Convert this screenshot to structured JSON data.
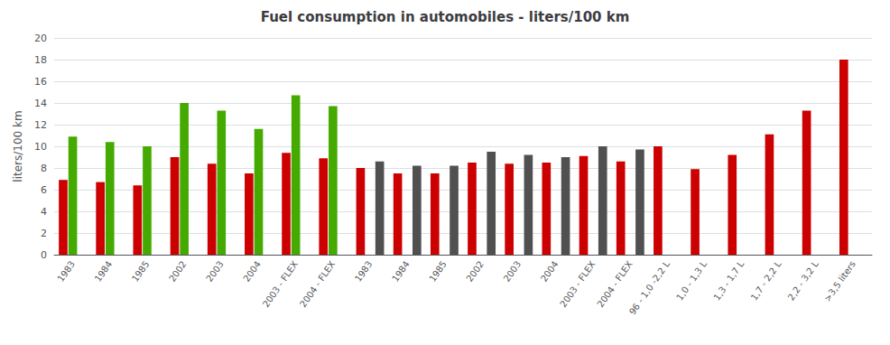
{
  "chart_data": {
    "type": "bar",
    "title": "Fuel consumption in automobiles - liters/100 km",
    "ylabel": "liters/100 km",
    "categories": [
      "1983",
      "1984",
      "1985",
      "2002",
      "2003",
      "2004",
      "2003 - FLEX",
      "2004 - FLEX",
      "1983",
      "1984",
      "1985",
      "2002",
      "2003",
      "2004",
      "2003 - FLEX",
      "2004 - FLEX",
      "96 - 1,0 -2,2 L",
      "1,0 - 1,3 L",
      "1,3 - 1,7 L",
      "1,7 - 2,2 L",
      "2,2 - 3,2 L",
      ">3,5 liters"
    ],
    "series": [
      {
        "color": "#cc0000",
        "values": [
          6.9,
          6.7,
          6.4,
          9.0,
          8.4,
          7.5,
          9.4,
          8.9,
          8.0,
          7.5,
          7.5,
          8.5,
          8.4,
          8.5,
          9.1,
          8.6,
          10.0,
          7.9,
          9.2,
          11.1,
          13.3,
          18.0
        ]
      },
      {
        "color": "#44aa00",
        "values": [
          10.9,
          10.4,
          10.0,
          14.0,
          13.3,
          11.6,
          14.7,
          13.7,
          null,
          null,
          null,
          null,
          null,
          null,
          null,
          null,
          null,
          null,
          null,
          null,
          null,
          null
        ]
      },
      {
        "color": "#505050",
        "values": [
          null,
          null,
          null,
          null,
          null,
          null,
          null,
          null,
          8.6,
          8.2,
          8.2,
          9.5,
          9.2,
          9.0,
          10.0,
          9.7,
          null,
          null,
          null,
          null,
          null,
          null
        ]
      }
    ],
    "ylim": [
      0,
      20
    ],
    "yticks": [
      0,
      2,
      4,
      6,
      8,
      10,
      12,
      14,
      16,
      18,
      20
    ],
    "grid": true
  }
}
